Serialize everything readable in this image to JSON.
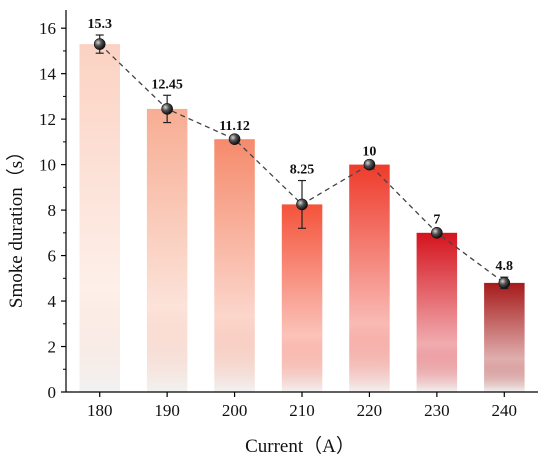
{
  "chart_data": {
    "type": "bar",
    "categories": [
      "180",
      "190",
      "200",
      "210",
      "220",
      "230",
      "240"
    ],
    "values": [
      15.3,
      12.45,
      11.12,
      8.25,
      10,
      7,
      4.8
    ],
    "value_labels": [
      "15.3",
      "12.45",
      "11.12",
      "8.25",
      "10",
      "7",
      "4.8"
    ],
    "error": [
      0.4,
      0.6,
      0.1,
      1.05,
      0.1,
      0.1,
      0.25
    ],
    "xlabel": "Current（A）",
    "ylabel": "Smoke duration（s）",
    "ylim": [
      0,
      16.8
    ],
    "yticks": [
      0,
      2,
      4,
      6,
      8,
      10,
      12,
      14,
      16
    ],
    "grid": false,
    "overlay_line": "dashed line with sphere markers connecting bar values",
    "bar_colors": [
      "#fbd2c2",
      "#f7ad93",
      "#f58a6c",
      "#f4533a",
      "#ee3b2b",
      "#d5131d",
      "#a61a1a"
    ],
    "bar_fade_color": "#f2f2f2"
  }
}
